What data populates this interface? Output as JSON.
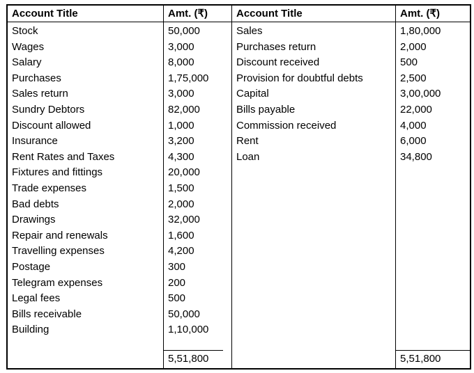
{
  "colors": {
    "background": "#ffffff",
    "border": "#000000",
    "text": "#000000"
  },
  "table": {
    "columns": {
      "title_header": "Account Title",
      "amount_header": "Amt. (₹)"
    },
    "left": {
      "rows": [
        {
          "title": "Stock",
          "amount": "50,000"
        },
        {
          "title": "Wages",
          "amount": "3,000"
        },
        {
          "title": "Salary",
          "amount": "8,000"
        },
        {
          "title": "Purchases",
          "amount": "1,75,000"
        },
        {
          "title": "Sales return",
          "amount": "3,000"
        },
        {
          "title": "Sundry Debtors",
          "amount": "82,000"
        },
        {
          "title": "Discount allowed",
          "amount": "1,000"
        },
        {
          "title": "Insurance",
          "amount": "3,200"
        },
        {
          "title": "Rent Rates and Taxes",
          "amount": "4,300"
        },
        {
          "title": "Fixtures and fittings",
          "amount": "20,000"
        },
        {
          "title": "Trade expenses",
          "amount": "1,500"
        },
        {
          "title": "Bad debts",
          "amount": "2,000"
        },
        {
          "title": "Drawings",
          "amount": "32,000"
        },
        {
          "title": "Repair and renewals",
          "amount": "1,600"
        },
        {
          "title": "Travelling expenses",
          "amount": "4,200"
        },
        {
          "title": "Postage",
          "amount": "300"
        },
        {
          "title": "Telegram expenses",
          "amount": "200"
        },
        {
          "title": "Legal fees",
          "amount": "500"
        },
        {
          "title": "Bills receivable",
          "amount": "50,000"
        },
        {
          "title": "Building",
          "amount": "1,10,000"
        }
      ],
      "total": "5,51,800"
    },
    "right": {
      "rows": [
        {
          "title": "Sales",
          "amount": "1,80,000"
        },
        {
          "title": "Purchases return",
          "amount": "2,000"
        },
        {
          "title": "Discount received",
          "amount": "500"
        },
        {
          "title": "Provision for doubtful debts",
          "amount": "2,500"
        },
        {
          "title": "Capital",
          "amount": "3,00,000"
        },
        {
          "title": "Bills payable",
          "amount": "22,000"
        },
        {
          "title": "Commission received",
          "amount": "4,000"
        },
        {
          "title": "Rent",
          "amount": "6,000"
        },
        {
          "title": "Loan",
          "amount": "34,800"
        }
      ],
      "total": "5,51,800"
    }
  }
}
